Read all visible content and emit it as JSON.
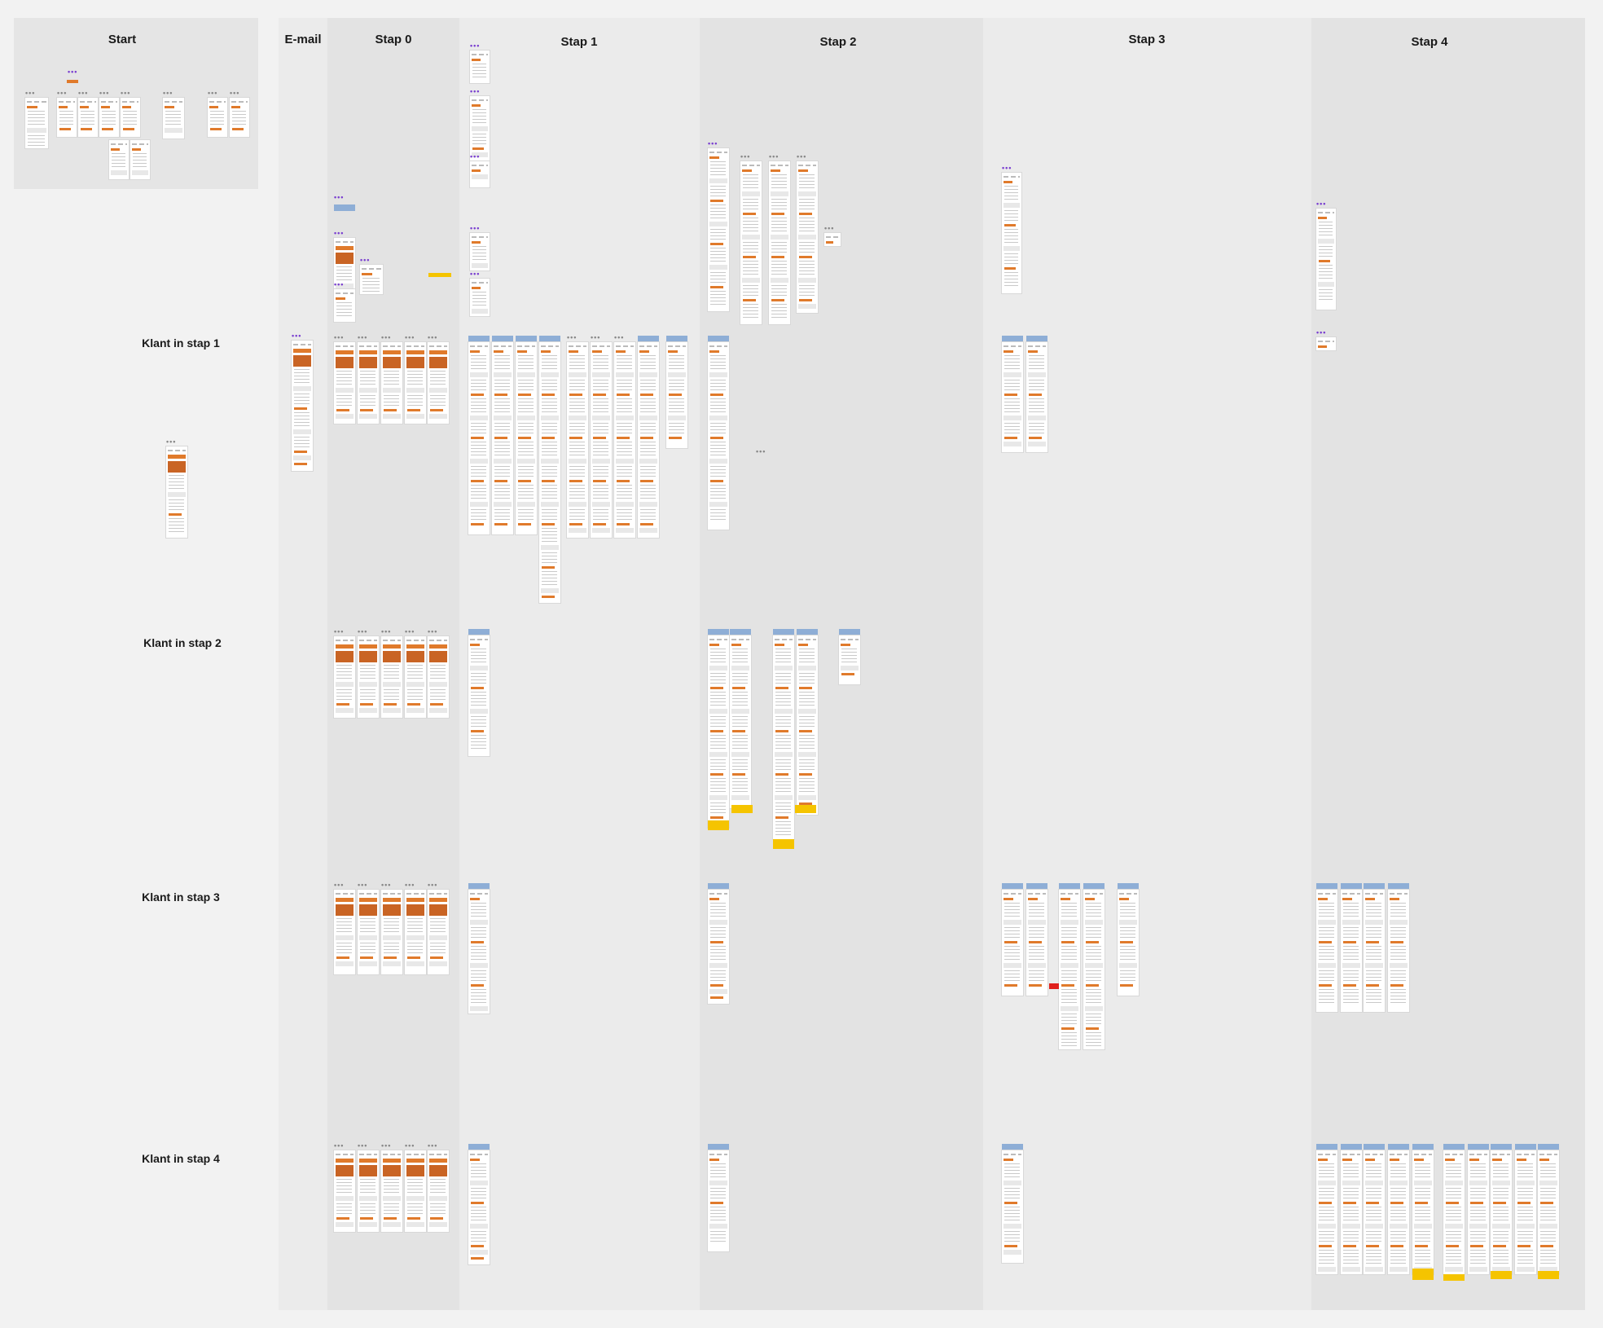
{
  "board": {
    "columns": [
      {
        "id": "start",
        "title": "Start"
      },
      {
        "id": "email",
        "title": "E-mail"
      },
      {
        "id": "stap0",
        "title": "Stap 0"
      },
      {
        "id": "stap1",
        "title": "Stap 1"
      },
      {
        "id": "stap2",
        "title": "Stap 2"
      },
      {
        "id": "stap3",
        "title": "Stap 3"
      },
      {
        "id": "stap4",
        "title": "Stap 4"
      }
    ],
    "rows": [
      {
        "id": "klant1",
        "label": "Klant in stap 1"
      },
      {
        "id": "klant2",
        "label": "Klant in stap 2"
      },
      {
        "id": "klant3",
        "label": "Klant in stap 3"
      },
      {
        "id": "klant4",
        "label": "Klant in stap 4"
      }
    ]
  },
  "theme": {
    "canvas": "#f2f2f2",
    "column_bg": "#e6e6e6",
    "accent_orange": "#e07a2b",
    "purple_marker": "#7a3fd0",
    "blue_header": "#8eaed6",
    "note_yellow": "#f5c400",
    "alert_red": "#e0201c"
  },
  "icons": {
    "more": "more-dots-icon",
    "frame": "screen-frame-thumbnail"
  }
}
